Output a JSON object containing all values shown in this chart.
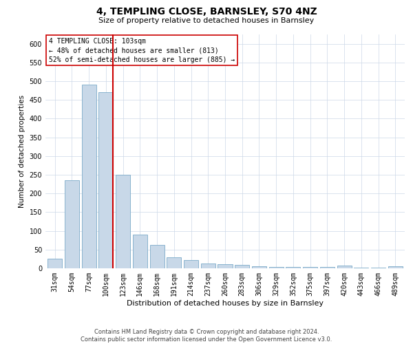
{
  "title": "4, TEMPLING CLOSE, BARNSLEY, S70 4NZ",
  "subtitle": "Size of property relative to detached houses in Barnsley",
  "xlabel": "Distribution of detached houses by size in Barnsley",
  "ylabel": "Number of detached properties",
  "categories": [
    "31sqm",
    "54sqm",
    "77sqm",
    "100sqm",
    "123sqm",
    "146sqm",
    "168sqm",
    "191sqm",
    "214sqm",
    "237sqm",
    "260sqm",
    "283sqm",
    "306sqm",
    "329sqm",
    "352sqm",
    "375sqm",
    "397sqm",
    "420sqm",
    "443sqm",
    "466sqm",
    "489sqm"
  ],
  "values": [
    25,
    235,
    490,
    470,
    250,
    90,
    62,
    30,
    22,
    12,
    11,
    10,
    5,
    3,
    3,
    3,
    3,
    7,
    2,
    2,
    5
  ],
  "bar_color": "#c8d8e8",
  "bar_edge_color": "#7aaac8",
  "highlight_line_index": 3,
  "highlight_line_color": "#cc0000",
  "annotation_line1": "4 TEMPLING CLOSE: 103sqm",
  "annotation_line2": "← 48% of detached houses are smaller (813)",
  "annotation_line3": "52% of semi-detached houses are larger (885) →",
  "annotation_border_color": "#cc0000",
  "ylim_max": 625,
  "yticks": [
    0,
    50,
    100,
    150,
    200,
    250,
    300,
    350,
    400,
    450,
    500,
    550,
    600
  ],
  "footer_line1": "Contains HM Land Registry data © Crown copyright and database right 2024.",
  "footer_line2": "Contains public sector information licensed under the Open Government Licence v3.0.",
  "grid_color": "#ccd8e8",
  "background_color": "#ffffff",
  "title_fontsize": 10,
  "subtitle_fontsize": 8,
  "ylabel_fontsize": 7.5,
  "xlabel_fontsize": 8,
  "tick_fontsize": 7,
  "annotation_fontsize": 7,
  "footer_fontsize": 6
}
